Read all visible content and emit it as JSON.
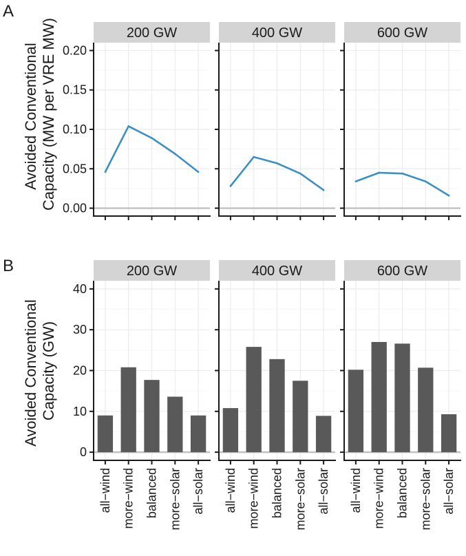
{
  "chart_data": [
    {
      "type": "line",
      "panel_label": "A",
      "ylabel_lines": [
        "Avoided Conventional",
        "Capacity (MW per VRE MW)"
      ],
      "ylim": [
        -0.01,
        0.21
      ],
      "y_ticks": [
        0.0,
        0.05,
        0.1,
        0.15,
        0.2
      ],
      "y_tick_labels": [
        "0.00",
        "0.05",
        "0.10",
        "0.15",
        "0.20"
      ],
      "categories": [
        "all−wind",
        "more−wind",
        "balanced",
        "more−solar",
        "all−solar"
      ],
      "show_x_tick_labels": false,
      "line_color": "#3b8fc2",
      "facets": [
        {
          "label": "200 GW",
          "values": [
            0.046,
            0.104,
            0.089,
            0.069,
            0.046
          ]
        },
        {
          "label": "400 GW",
          "values": [
            0.028,
            0.065,
            0.057,
            0.044,
            0.023
          ]
        },
        {
          "label": "600 GW",
          "values": [
            0.034,
            0.045,
            0.044,
            0.034,
            0.016
          ]
        }
      ]
    },
    {
      "type": "bar",
      "panel_label": "B",
      "ylabel_lines": [
        "Avoided Conventional",
        "Capacity (GW)"
      ],
      "ylim": [
        -2,
        42
      ],
      "y_ticks": [
        0,
        10,
        20,
        30,
        40
      ],
      "y_tick_labels": [
        "0",
        "10",
        "20",
        "30",
        "40"
      ],
      "categories": [
        "all−wind",
        "more−wind",
        "balanced",
        "more−solar",
        "all−solar"
      ],
      "show_x_tick_labels": true,
      "bar_color": "#595959",
      "facets": [
        {
          "label": "200 GW",
          "values": [
            9.0,
            20.8,
            17.7,
            13.6,
            9.0
          ]
        },
        {
          "label": "400 GW",
          "values": [
            10.8,
            25.8,
            22.8,
            17.5,
            8.9
          ]
        },
        {
          "label": "600 GW",
          "values": [
            20.2,
            27.0,
            26.6,
            20.7,
            9.3
          ]
        }
      ]
    }
  ]
}
